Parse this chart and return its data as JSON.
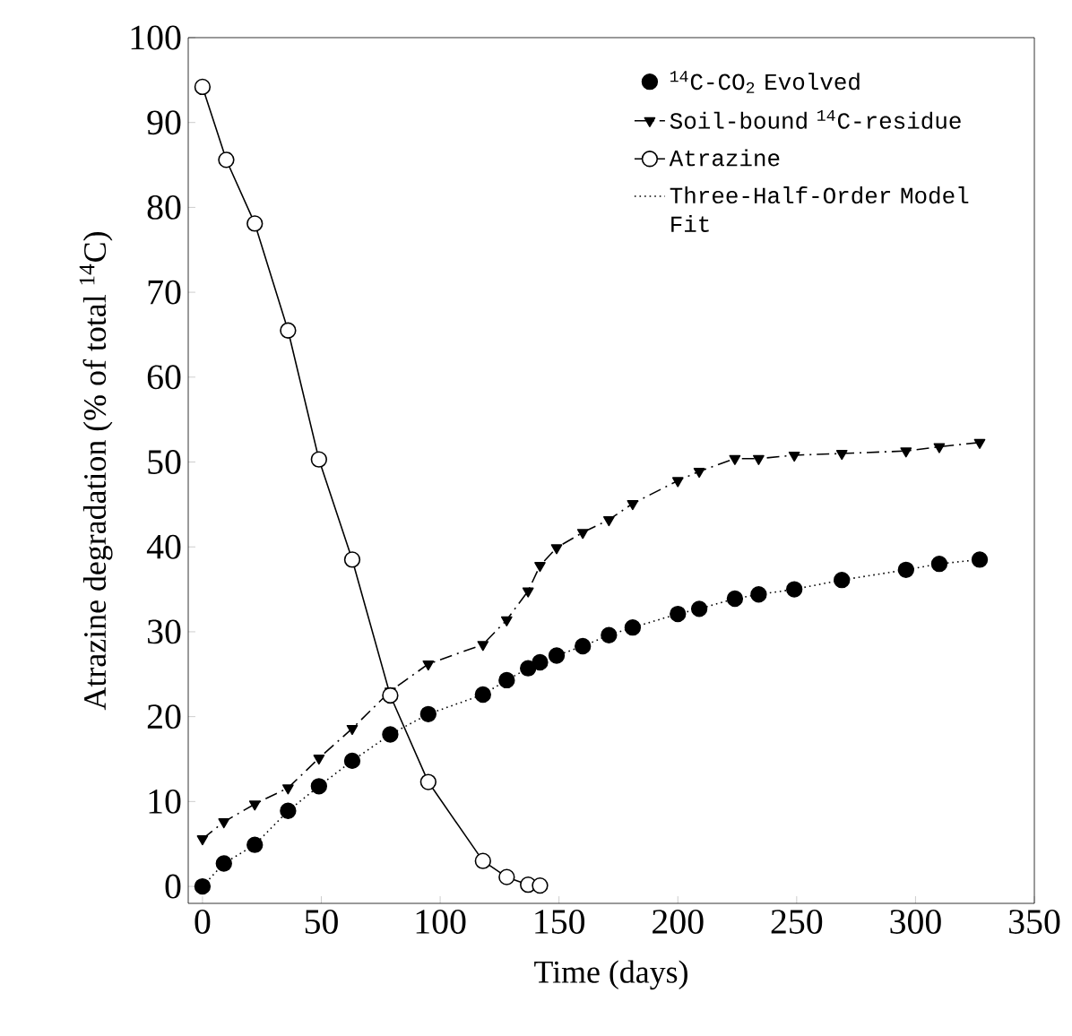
{
  "chart_data": {
    "type": "line",
    "xlabel": "Time (days)",
    "ylabel": "Atrazine degradation (% of total $^{14}$C)",
    "xlim": [
      -6,
      350
    ],
    "ylim": [
      -2,
      100
    ],
    "xticks": [
      0,
      50,
      100,
      150,
      200,
      250,
      300,
      350
    ],
    "yticks": [
      0,
      10,
      20,
      30,
      40,
      50,
      60,
      70,
      80,
      90,
      100
    ],
    "grid": false,
    "legend": "top right",
    "series": [
      {
        "name": "$^{14}$C-CO$_{2}$ Evolved",
        "type": "scatter",
        "marker": "circle",
        "color": "#000000",
        "x": [
          0,
          9,
          22,
          36,
          49,
          63,
          79,
          95,
          118,
          128,
          137,
          142,
          149,
          160,
          171,
          181,
          200,
          209,
          224,
          234,
          249,
          269,
          296,
          310,
          327
        ],
        "values": [
          0,
          2.7,
          4.9,
          8.9,
          11.8,
          14.8,
          17.9,
          20.3,
          22.6,
          24.3,
          25.7,
          26.4,
          27.2,
          28.3,
          29.6,
          30.5,
          32.1,
          32.7,
          33.9,
          34.4,
          35.0,
          36.1,
          37.3,
          38.0,
          38.5
        ]
      },
      {
        "name": "Soil-bound $^{14}$C-residue",
        "line_style": "dashed",
        "marker": "triangle",
        "color": "#000000",
        "x": [
          0,
          9,
          22,
          36,
          49,
          63,
          79,
          95,
          118,
          128,
          137,
          142,
          149,
          160,
          171,
          181,
          200,
          209,
          224,
          234,
          249,
          269,
          296,
          310,
          327
        ],
        "values": [
          5.6,
          7.6,
          9.7,
          11.6,
          15.1,
          18.6,
          23.0,
          26.2,
          28.5,
          31.4,
          34.8,
          37.8,
          39.9,
          41.7,
          43.2,
          45.1,
          47.8,
          48.9,
          50.4,
          50.4,
          50.8,
          51.0,
          51.3,
          51.8,
          52.3
        ]
      },
      {
        "name": "Atrazine",
        "line_style": "solid",
        "marker": "circle",
        "color": "#000000",
        "x": [
          0,
          10,
          22,
          36,
          49,
          63,
          79,
          95,
          118,
          128,
          137,
          142
        ],
        "values": [
          94.2,
          85.6,
          78.1,
          65.5,
          50.3,
          38.5,
          22.5,
          12.3,
          3.0,
          1.1,
          0.2,
          0.1
        ]
      },
      {
        "name": "Three-Half-Order Model Fit",
        "line_style": "dotted",
        "marker": "none",
        "color": "#000000",
        "x": [
          0,
          9,
          22,
          36,
          49,
          63,
          79,
          95,
          118,
          128,
          137,
          142,
          149,
          160,
          171,
          181,
          200,
          209,
          224,
          234,
          249,
          269,
          296,
          310,
          327
        ],
        "values": [
          0,
          2.7,
          4.9,
          8.9,
          11.8,
          14.8,
          17.9,
          20.3,
          22.6,
          24.3,
          25.7,
          26.4,
          27.2,
          28.3,
          29.6,
          30.5,
          32.1,
          32.7,
          33.9,
          34.4,
          35.0,
          36.1,
          37.3,
          38.0,
          38.5
        ]
      }
    ]
  }
}
